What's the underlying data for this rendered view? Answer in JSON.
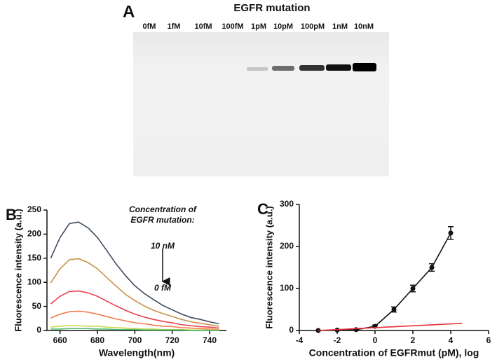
{
  "gel": {
    "label": "A",
    "title": "EGFR mutation",
    "lanes": [
      "0fM",
      "1fM",
      "10fM",
      "100fM",
      "1pM",
      "10pM",
      "100pM",
      "1nM",
      "10nM"
    ]
  },
  "chart_data": [
    {
      "type": "line",
      "label": "B",
      "ylabel": "Fluorescence intensity (a.u.)",
      "xlabel": "Wavelength(nm)",
      "annotations": [
        "Concentration of",
        "EGFR mutation:",
        "10 nM",
        "0 fM"
      ],
      "x": [
        655,
        660,
        665,
        670,
        675,
        680,
        685,
        690,
        695,
        700,
        705,
        710,
        715,
        720,
        725,
        730,
        735,
        740,
        745
      ],
      "series": [
        {
          "color": "#3d4a5c",
          "values": [
            150,
            193,
            222,
            225,
            213,
            193,
            166,
            138,
            114,
            93,
            77,
            64,
            52,
            43,
            34,
            27,
            23,
            18,
            14
          ]
        },
        {
          "color": "#c8914a",
          "values": [
            99,
            128,
            147,
            149,
            141,
            128,
            110,
            92,
            75,
            62,
            51,
            42,
            35,
            29,
            23,
            18,
            15,
            12,
            9
          ]
        },
        {
          "color": "#e8404a",
          "values": [
            55,
            71,
            81,
            82,
            78,
            71,
            61,
            51,
            42,
            34,
            28,
            23,
            19,
            16,
            12,
            10,
            8,
            7,
            5
          ]
        },
        {
          "color": "#f07a4a",
          "values": [
            26,
            34,
            39,
            40,
            38,
            34,
            29,
            24,
            20,
            16,
            14,
            11,
            9,
            8,
            6,
            5,
            4,
            3,
            2
          ]
        },
        {
          "color": "#c8d850",
          "values": [
            7,
            9,
            10,
            10,
            9,
            9,
            7,
            6,
            5,
            4,
            3,
            3,
            2,
            2,
            2,
            1,
            1,
            1,
            1
          ]
        },
        {
          "color": "#50c070",
          "values": [
            3,
            3,
            4,
            4,
            4,
            3,
            3,
            2,
            2,
            2,
            1,
            1,
            1,
            1,
            1,
            0,
            0,
            0,
            0
          ]
        }
      ],
      "xlim": [
        653,
        749
      ],
      "xticks": [
        660,
        680,
        700,
        720,
        740
      ],
      "ylim": [
        0,
        250
      ],
      "yticks": [
        0,
        50,
        100,
        150,
        200,
        250
      ]
    },
    {
      "type": "scatter",
      "label": "C",
      "ylabel": "Fluorescence intensity (a.u.)",
      "xlabel": "Concentration of EGFRmut (pM), log",
      "series": [
        {
          "color": "#111111",
          "x": [
            -3,
            -2,
            -1,
            0,
            1,
            2,
            3,
            4
          ],
          "values": [
            0,
            1,
            2,
            10,
            50,
            100,
            150,
            232
          ],
          "errors": [
            0,
            0,
            0,
            3,
            6,
            8,
            9,
            15
          ]
        },
        {
          "color": "#e8303a",
          "x": [
            -3,
            4.6
          ],
          "values": [
            0,
            17
          ]
        }
      ],
      "xlim": [
        -4,
        6
      ],
      "xticks": [
        -4,
        -2,
        0,
        2,
        4,
        6
      ],
      "ylim": [
        0,
        300
      ],
      "yticks": [
        0,
        100,
        200,
        300
      ]
    }
  ]
}
